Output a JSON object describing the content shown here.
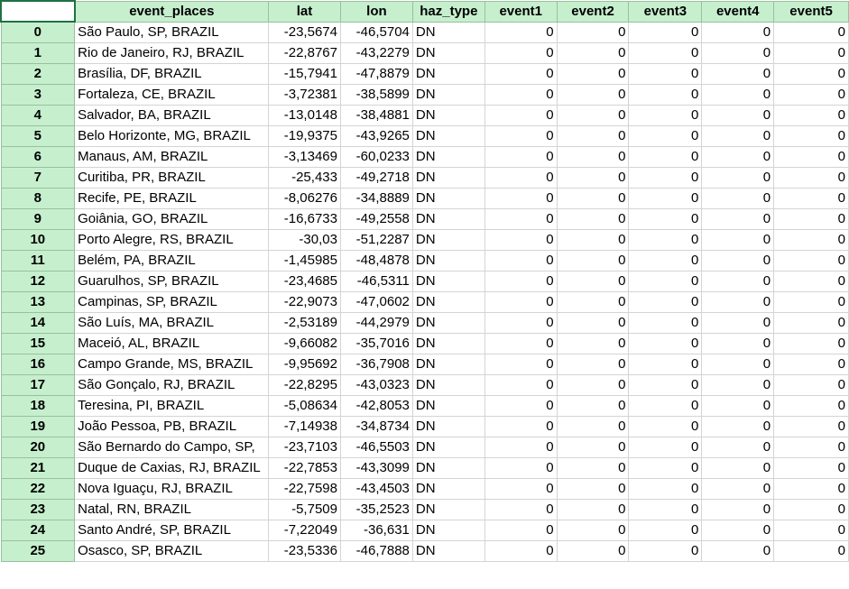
{
  "headers": [
    "event_places",
    "lat",
    "lon",
    "haz_type",
    "event1",
    "event2",
    "event3",
    "event4",
    "event5"
  ],
  "rows": [
    {
      "idx": "0",
      "place": "São Paulo, SP, BRAZIL",
      "lat": "-23,5674",
      "lon": "-46,5704",
      "haz": "DN",
      "e1": "0",
      "e2": "0",
      "e3": "0",
      "e4": "0",
      "e5": "0"
    },
    {
      "idx": "1",
      "place": "Rio de Janeiro, RJ, BRAZIL",
      "lat": "-22,8767",
      "lon": "-43,2279",
      "haz": "DN",
      "e1": "0",
      "e2": "0",
      "e3": "0",
      "e4": "0",
      "e5": "0"
    },
    {
      "idx": "2",
      "place": "Brasília, DF, BRAZIL",
      "lat": "-15,7941",
      "lon": "-47,8879",
      "haz": "DN",
      "e1": "0",
      "e2": "0",
      "e3": "0",
      "e4": "0",
      "e5": "0"
    },
    {
      "idx": "3",
      "place": "Fortaleza, CE, BRAZIL",
      "lat": "-3,72381",
      "lon": "-38,5899",
      "haz": "DN",
      "e1": "0",
      "e2": "0",
      "e3": "0",
      "e4": "0",
      "e5": "0"
    },
    {
      "idx": "4",
      "place": "Salvador, BA, BRAZIL",
      "lat": "-13,0148",
      "lon": "-38,4881",
      "haz": "DN",
      "e1": "0",
      "e2": "0",
      "e3": "0",
      "e4": "0",
      "e5": "0"
    },
    {
      "idx": "5",
      "place": "Belo Horizonte, MG, BRAZIL",
      "lat": "-19,9375",
      "lon": "-43,9265",
      "haz": "DN",
      "e1": "0",
      "e2": "0",
      "e3": "0",
      "e4": "0",
      "e5": "0"
    },
    {
      "idx": "6",
      "place": "Manaus, AM, BRAZIL",
      "lat": "-3,13469",
      "lon": "-60,0233",
      "haz": "DN",
      "e1": "0",
      "e2": "0",
      "e3": "0",
      "e4": "0",
      "e5": "0"
    },
    {
      "idx": "7",
      "place": "Curitiba, PR, BRAZIL",
      "lat": "-25,433",
      "lon": "-49,2718",
      "haz": "DN",
      "e1": "0",
      "e2": "0",
      "e3": "0",
      "e4": "0",
      "e5": "0"
    },
    {
      "idx": "8",
      "place": "Recife, PE, BRAZIL",
      "lat": "-8,06276",
      "lon": "-34,8889",
      "haz": "DN",
      "e1": "0",
      "e2": "0",
      "e3": "0",
      "e4": "0",
      "e5": "0"
    },
    {
      "idx": "9",
      "place": "Goiânia, GO, BRAZIL",
      "lat": "-16,6733",
      "lon": "-49,2558",
      "haz": "DN",
      "e1": "0",
      "e2": "0",
      "e3": "0",
      "e4": "0",
      "e5": "0"
    },
    {
      "idx": "10",
      "place": "Porto Alegre, RS, BRAZIL",
      "lat": "-30,03",
      "lon": "-51,2287",
      "haz": "DN",
      "e1": "0",
      "e2": "0",
      "e3": "0",
      "e4": "0",
      "e5": "0"
    },
    {
      "idx": "11",
      "place": "Belém, PA, BRAZIL",
      "lat": "-1,45985",
      "lon": "-48,4878",
      "haz": "DN",
      "e1": "0",
      "e2": "0",
      "e3": "0",
      "e4": "0",
      "e5": "0"
    },
    {
      "idx": "12",
      "place": "Guarulhos, SP, BRAZIL",
      "lat": "-23,4685",
      "lon": "-46,5311",
      "haz": "DN",
      "e1": "0",
      "e2": "0",
      "e3": "0",
      "e4": "0",
      "e5": "0"
    },
    {
      "idx": "13",
      "place": "Campinas, SP, BRAZIL",
      "lat": "-22,9073",
      "lon": "-47,0602",
      "haz": "DN",
      "e1": "0",
      "e2": "0",
      "e3": "0",
      "e4": "0",
      "e5": "0"
    },
    {
      "idx": "14",
      "place": "São Luís, MA, BRAZIL",
      "lat": "-2,53189",
      "lon": "-44,2979",
      "haz": "DN",
      "e1": "0",
      "e2": "0",
      "e3": "0",
      "e4": "0",
      "e5": "0"
    },
    {
      "idx": "15",
      "place": "Maceió, AL, BRAZIL",
      "lat": "-9,66082",
      "lon": "-35,7016",
      "haz": "DN",
      "e1": "0",
      "e2": "0",
      "e3": "0",
      "e4": "0",
      "e5": "0"
    },
    {
      "idx": "16",
      "place": "Campo Grande, MS, BRAZIL",
      "lat": "-9,95692",
      "lon": "-36,7908",
      "haz": "DN",
      "e1": "0",
      "e2": "0",
      "e3": "0",
      "e4": "0",
      "e5": "0"
    },
    {
      "idx": "17",
      "place": "São Gonçalo, RJ, BRAZIL",
      "lat": "-22,8295",
      "lon": "-43,0323",
      "haz": "DN",
      "e1": "0",
      "e2": "0",
      "e3": "0",
      "e4": "0",
      "e5": "0"
    },
    {
      "idx": "18",
      "place": "Teresina, PI, BRAZIL",
      "lat": "-5,08634",
      "lon": "-42,8053",
      "haz": "DN",
      "e1": "0",
      "e2": "0",
      "e3": "0",
      "e4": "0",
      "e5": "0"
    },
    {
      "idx": "19",
      "place": "João Pessoa, PB, BRAZIL",
      "lat": "-7,14938",
      "lon": "-34,8734",
      "haz": "DN",
      "e1": "0",
      "e2": "0",
      "e3": "0",
      "e4": "0",
      "e5": "0"
    },
    {
      "idx": "20",
      "place": "São Bernardo do Campo, SP,",
      "lat": "-23,7103",
      "lon": "-46,5503",
      "haz": "DN",
      "e1": "0",
      "e2": "0",
      "e3": "0",
      "e4": "0",
      "e5": "0"
    },
    {
      "idx": "21",
      "place": "Duque de Caxias, RJ, BRAZIL",
      "lat": "-22,7853",
      "lon": "-43,3099",
      "haz": "DN",
      "e1": "0",
      "e2": "0",
      "e3": "0",
      "e4": "0",
      "e5": "0"
    },
    {
      "idx": "22",
      "place": "Nova Iguaçu, RJ, BRAZIL",
      "lat": "-22,7598",
      "lon": "-43,4503",
      "haz": "DN",
      "e1": "0",
      "e2": "0",
      "e3": "0",
      "e4": "0",
      "e5": "0"
    },
    {
      "idx": "23",
      "place": "Natal, RN, BRAZIL",
      "lat": "-5,7509",
      "lon": "-35,2523",
      "haz": "DN",
      "e1": "0",
      "e2": "0",
      "e3": "0",
      "e4": "0",
      "e5": "0"
    },
    {
      "idx": "24",
      "place": "Santo André, SP, BRAZIL",
      "lat": "-7,22049",
      "lon": "-36,631",
      "haz": "DN",
      "e1": "0",
      "e2": "0",
      "e3": "0",
      "e4": "0",
      "e5": "0"
    },
    {
      "idx": "25",
      "place": "Osasco, SP, BRAZIL",
      "lat": "-23,5336",
      "lon": "-46,7888",
      "haz": "DN",
      "e1": "0",
      "e2": "0",
      "e3": "0",
      "e4": "0",
      "e5": "0"
    }
  ]
}
